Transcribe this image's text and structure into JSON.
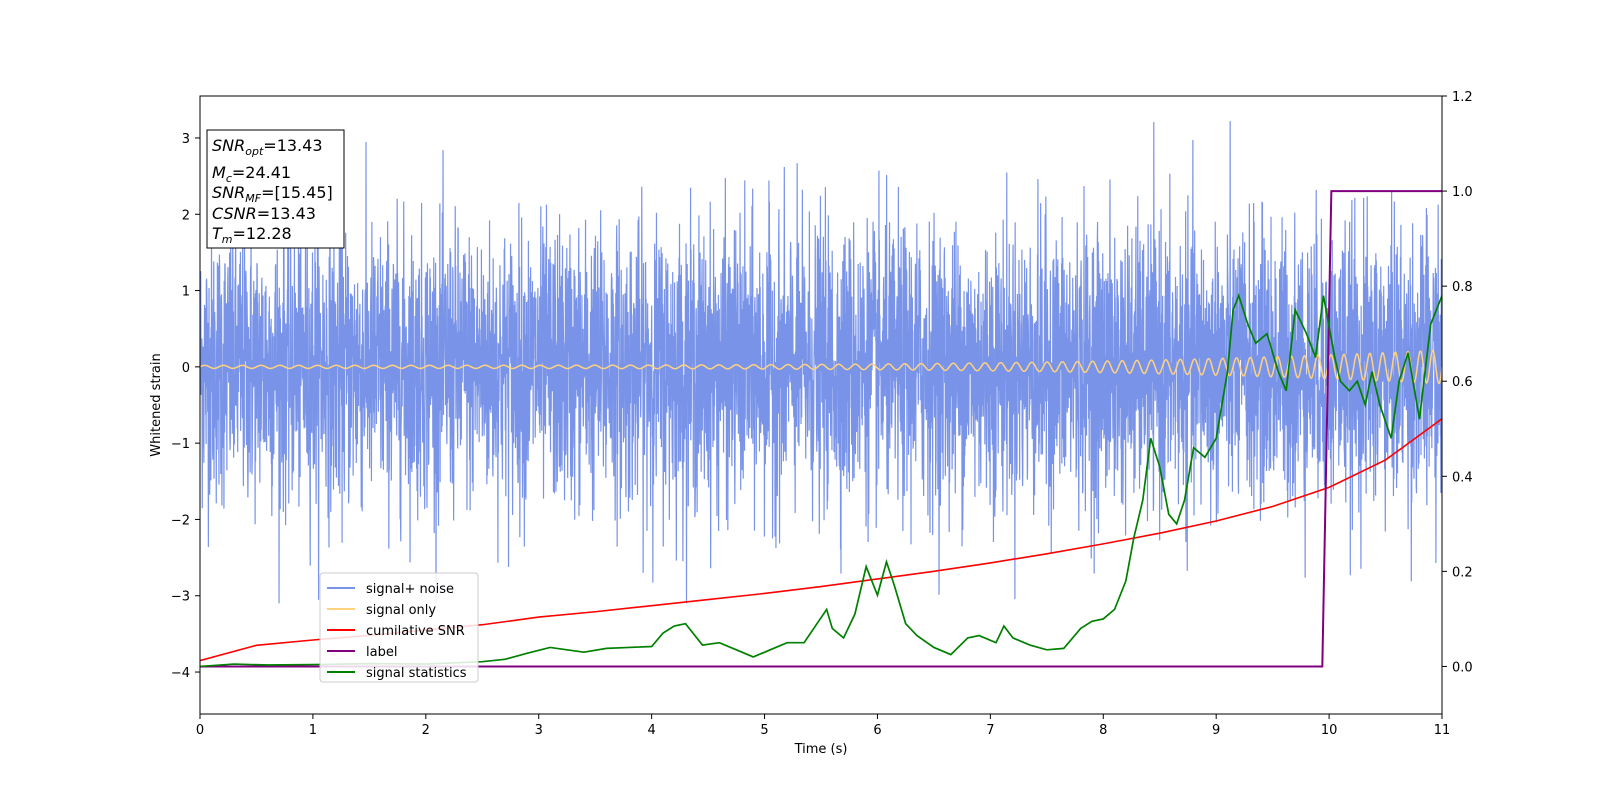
{
  "chart_data": {
    "type": "line",
    "xlabel": "Time (s)",
    "ylabel": "Whitened strain",
    "xlim": [
      0,
      11
    ],
    "ylim_left": [
      -4.55,
      3.55
    ],
    "ylim_right": [
      -0.1,
      1.2
    ],
    "x_ticks": [
      0,
      1,
      2,
      3,
      4,
      5,
      6,
      7,
      8,
      9,
      10,
      11
    ],
    "y_ticks_left": [
      -4,
      -3,
      -2,
      -1,
      0,
      1,
      2,
      3
    ],
    "y_ticks_right": [
      "0.0",
      "0.2",
      "0.4",
      "0.6",
      "0.8",
      "1.0",
      "1.2"
    ],
    "y_ticks_right_values": [
      0.0,
      0.2,
      0.4,
      0.6,
      0.8,
      1.0,
      1.2
    ],
    "info_box": {
      "snr_opt": {
        "base": "SNR",
        "sub": "opt",
        "value": "=13.43"
      },
      "mc": {
        "base": "M",
        "sub": "c",
        "value": "=24.41"
      },
      "snr_mf": {
        "base": "SNR",
        "sub": "MF",
        "value": "=[15.45]"
      },
      "csnr": {
        "base": "CSNR",
        "sub": "",
        "value": "=13.43"
      },
      "tm": {
        "base": "T",
        "sub": "m",
        "value": "=12.28"
      }
    },
    "legend": {
      "placement": "lower-left",
      "entries": [
        {
          "label": "signal+ noise",
          "color": "#7893e8"
        },
        {
          "label": "signal only",
          "color": "#ffd27f"
        },
        {
          "label": "cumilative SNR",
          "color": "#ff0000"
        },
        {
          "label": "label",
          "color": "#800080"
        },
        {
          "label": "signal statistics",
          "color": "#008000"
        }
      ]
    },
    "series": [
      {
        "name": "signal+ noise",
        "axis": "left",
        "color": "#7893e8",
        "description_values": {
          "noise_sigma": 0.9,
          "max": 3.22,
          "min": -3.1
        }
      },
      {
        "name": "signal only",
        "axis": "left",
        "color": "#ffd27f",
        "amplitude_start": 0.02,
        "amplitude_end": 0.22
      },
      {
        "name": "cumilative SNR",
        "axis": "left",
        "color": "#ff0000",
        "x": [
          0,
          0.5,
          1,
          1.5,
          2,
          2.5,
          3,
          3.5,
          4,
          4.5,
          5,
          5.5,
          6,
          6.5,
          7,
          7.5,
          8,
          8.5,
          9,
          9.5,
          10,
          10.5,
          11
        ],
        "y": [
          -3.85,
          -3.65,
          -3.58,
          -3.52,
          -3.45,
          -3.38,
          -3.28,
          -3.21,
          -3.13,
          -3.05,
          -2.97,
          -2.88,
          -2.78,
          -2.68,
          -2.57,
          -2.45,
          -2.32,
          -2.18,
          -2.02,
          -1.83,
          -1.58,
          -1.22,
          -0.68
        ]
      },
      {
        "name": "label",
        "axis": "right",
        "color": "#800080",
        "x": [
          0,
          9.94,
          10.02,
          11
        ],
        "y": [
          0,
          0,
          1,
          1
        ]
      },
      {
        "name": "signal statistics",
        "axis": "right",
        "color": "#008000",
        "x": [
          0,
          0.3,
          0.6,
          1.0,
          1.5,
          2.0,
          2.5,
          2.7,
          2.9,
          3.1,
          3.4,
          3.6,
          3.8,
          4.0,
          4.1,
          4.2,
          4.3,
          4.45,
          4.6,
          4.75,
          4.9,
          5.05,
          5.2,
          5.35,
          5.45,
          5.55,
          5.6,
          5.7,
          5.8,
          5.9,
          6.0,
          6.08,
          6.15,
          6.25,
          6.35,
          6.5,
          6.65,
          6.8,
          6.9,
          7.05,
          7.12,
          7.2,
          7.35,
          7.5,
          7.65,
          7.8,
          7.9,
          8.0,
          8.1,
          8.2,
          8.27,
          8.35,
          8.42,
          8.5,
          8.58,
          8.65,
          8.72,
          8.8,
          8.9,
          9.0,
          9.1,
          9.15,
          9.2,
          9.28,
          9.35,
          9.45,
          9.55,
          9.62,
          9.7,
          9.8,
          9.88,
          9.95,
          10.05,
          10.1,
          10.18,
          10.25,
          10.32,
          10.38,
          10.45,
          10.55,
          10.62,
          10.7,
          10.8,
          10.9,
          11.0
        ],
        "y": [
          0.0,
          0.005,
          0.003,
          0.004,
          0.006,
          0.005,
          0.01,
          0.015,
          0.028,
          0.04,
          0.03,
          0.038,
          0.04,
          0.042,
          0.07,
          0.085,
          0.09,
          0.045,
          0.05,
          0.035,
          0.02,
          0.035,
          0.05,
          0.05,
          0.085,
          0.12,
          0.08,
          0.06,
          0.11,
          0.21,
          0.15,
          0.22,
          0.17,
          0.09,
          0.065,
          0.04,
          0.025,
          0.06,
          0.065,
          0.05,
          0.085,
          0.06,
          0.045,
          0.035,
          0.038,
          0.08,
          0.095,
          0.1,
          0.12,
          0.18,
          0.27,
          0.35,
          0.48,
          0.42,
          0.32,
          0.3,
          0.35,
          0.46,
          0.44,
          0.48,
          0.62,
          0.75,
          0.78,
          0.72,
          0.68,
          0.7,
          0.62,
          0.58,
          0.75,
          0.7,
          0.65,
          0.78,
          0.65,
          0.6,
          0.58,
          0.6,
          0.55,
          0.62,
          0.55,
          0.48,
          0.6,
          0.66,
          0.52,
          0.72,
          0.78
        ]
      }
    ]
  }
}
